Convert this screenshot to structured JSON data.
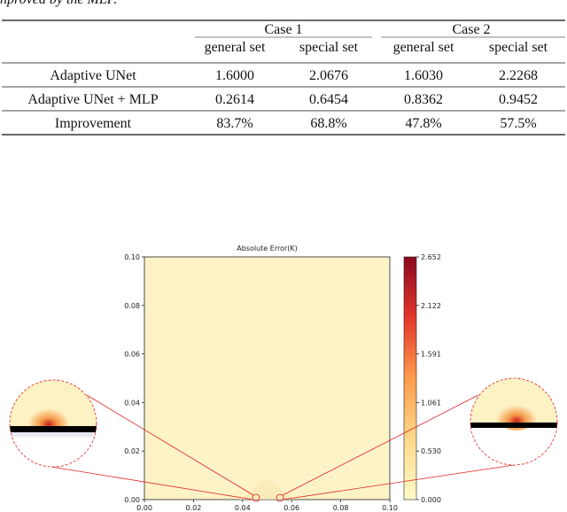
{
  "caption_fragment": "nproved by the MLP.",
  "table": {
    "groups": [
      "Case 1",
      "Case 2"
    ],
    "subheaders": [
      "general set",
      "special set",
      "general set",
      "special set"
    ],
    "rows": [
      [
        "Adaptive UNet",
        "1.6000",
        "2.0676",
        "1.6030",
        "2.2268"
      ],
      [
        "Adaptive UNet + MLP",
        "0.2614",
        "0.6454",
        "0.8362",
        "0.9452"
      ],
      [
        "Improvement",
        "83.7%",
        "68.8%",
        "47.8%",
        "57.5%"
      ]
    ]
  },
  "figure": {
    "title": "Absolute Error(K)",
    "xlim": [
      0,
      0.1
    ],
    "ylim": [
      0,
      0.1
    ],
    "xticks": [
      {
        "value": 0,
        "label": "0.00"
      },
      {
        "value": 0.02,
        "label": "0.02"
      },
      {
        "value": 0.04,
        "label": "0.04"
      },
      {
        "value": 0.06,
        "label": "0.06"
      },
      {
        "value": 0.08,
        "label": "0.08"
      },
      {
        "value": 0.1,
        "label": "0.10"
      }
    ],
    "yticks": [
      {
        "value": 0,
        "label": "0.00"
      },
      {
        "value": 0.02,
        "label": "0.02"
      },
      {
        "value": 0.04,
        "label": "0.04"
      },
      {
        "value": 0.06,
        "label": "0.06"
      },
      {
        "value": 0.08,
        "label": "0.08"
      },
      {
        "value": 0.1,
        "label": "0.10"
      }
    ],
    "colorbar": {
      "lim": [
        0,
        2.652
      ],
      "ticks": [
        {
          "value": 0,
          "label": "0.000"
        },
        {
          "value": 0.53,
          "label": "0.530"
        },
        {
          "value": 1.061,
          "label": "1.061"
        },
        {
          "value": 1.591,
          "label": "1.591"
        },
        {
          "value": 2.122,
          "label": "2.122"
        },
        {
          "value": 2.652,
          "label": "2.652"
        }
      ]
    }
  }
}
